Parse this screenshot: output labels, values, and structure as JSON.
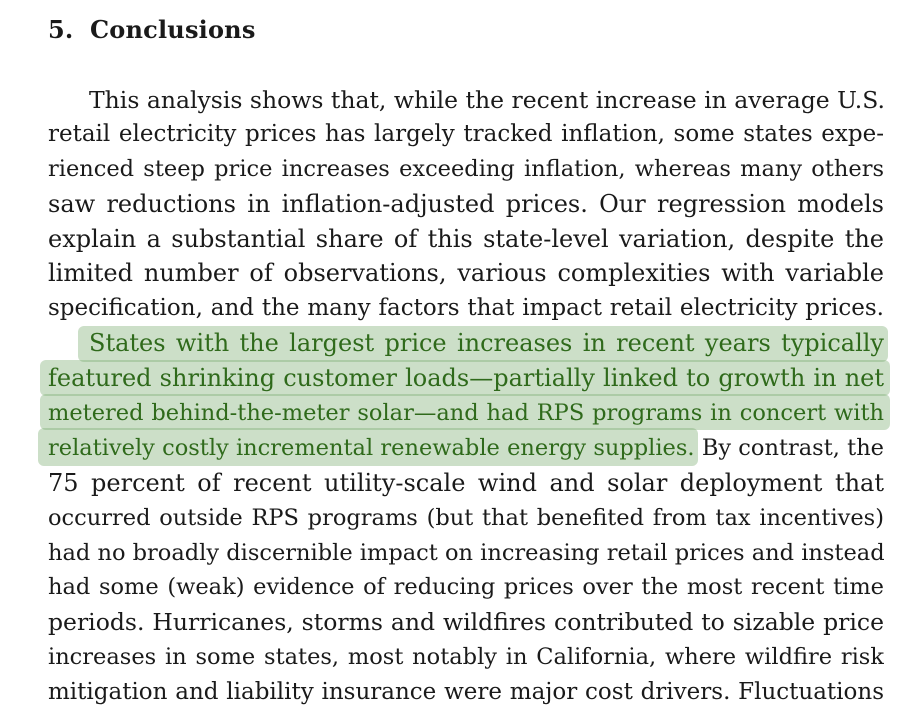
{
  "section": {
    "number": "5.",
    "title": "Conclusions"
  },
  "colors": {
    "highlight_background": "#c9ddc0",
    "highlight_text": "#2f6a1b",
    "body_text": "#1a1a1a"
  },
  "paragraph1": {
    "lines": [
      "This analysis shows that, while the recent increase in average U.S.",
      "retail electricity prices has largely tracked inflation, some states expe-",
      "rienced steep price increases exceeding inflation, whereas many others",
      "saw reductions in inflation-adjusted prices. Our regression models",
      "explain a substantial share of this state-level variation, despite the",
      "limited number of observations, various complexities with variable",
      "specification, and the many factors that impact retail electricity prices."
    ]
  },
  "paragraph2": {
    "highlighted_lines": [
      "States with the largest price increases in recent years typically",
      "featured shrinking customer loads—partially linked to growth in net",
      "metered behind-the-meter solar—and had RPS programs in concert with"
    ],
    "highlighted_tail": "relatively costly incremental renewable energy supplies.",
    "tail_rest": " By contrast, the",
    "lines": [
      "75 percent of recent utility-scale wind and solar deployment that",
      "occurred outside RPS programs (but that benefited from tax incentives)",
      "had no broadly discernible impact on increasing retail prices and instead",
      "had some (weak) evidence of reducing prices over the most recent time",
      "periods. Hurricanes, storms and wildfires contributed to sizable price",
      "increases in some states, most notably in California, where wildfire risk",
      "mitigation and liability insurance were major cost drivers. Fluctuations"
    ]
  }
}
